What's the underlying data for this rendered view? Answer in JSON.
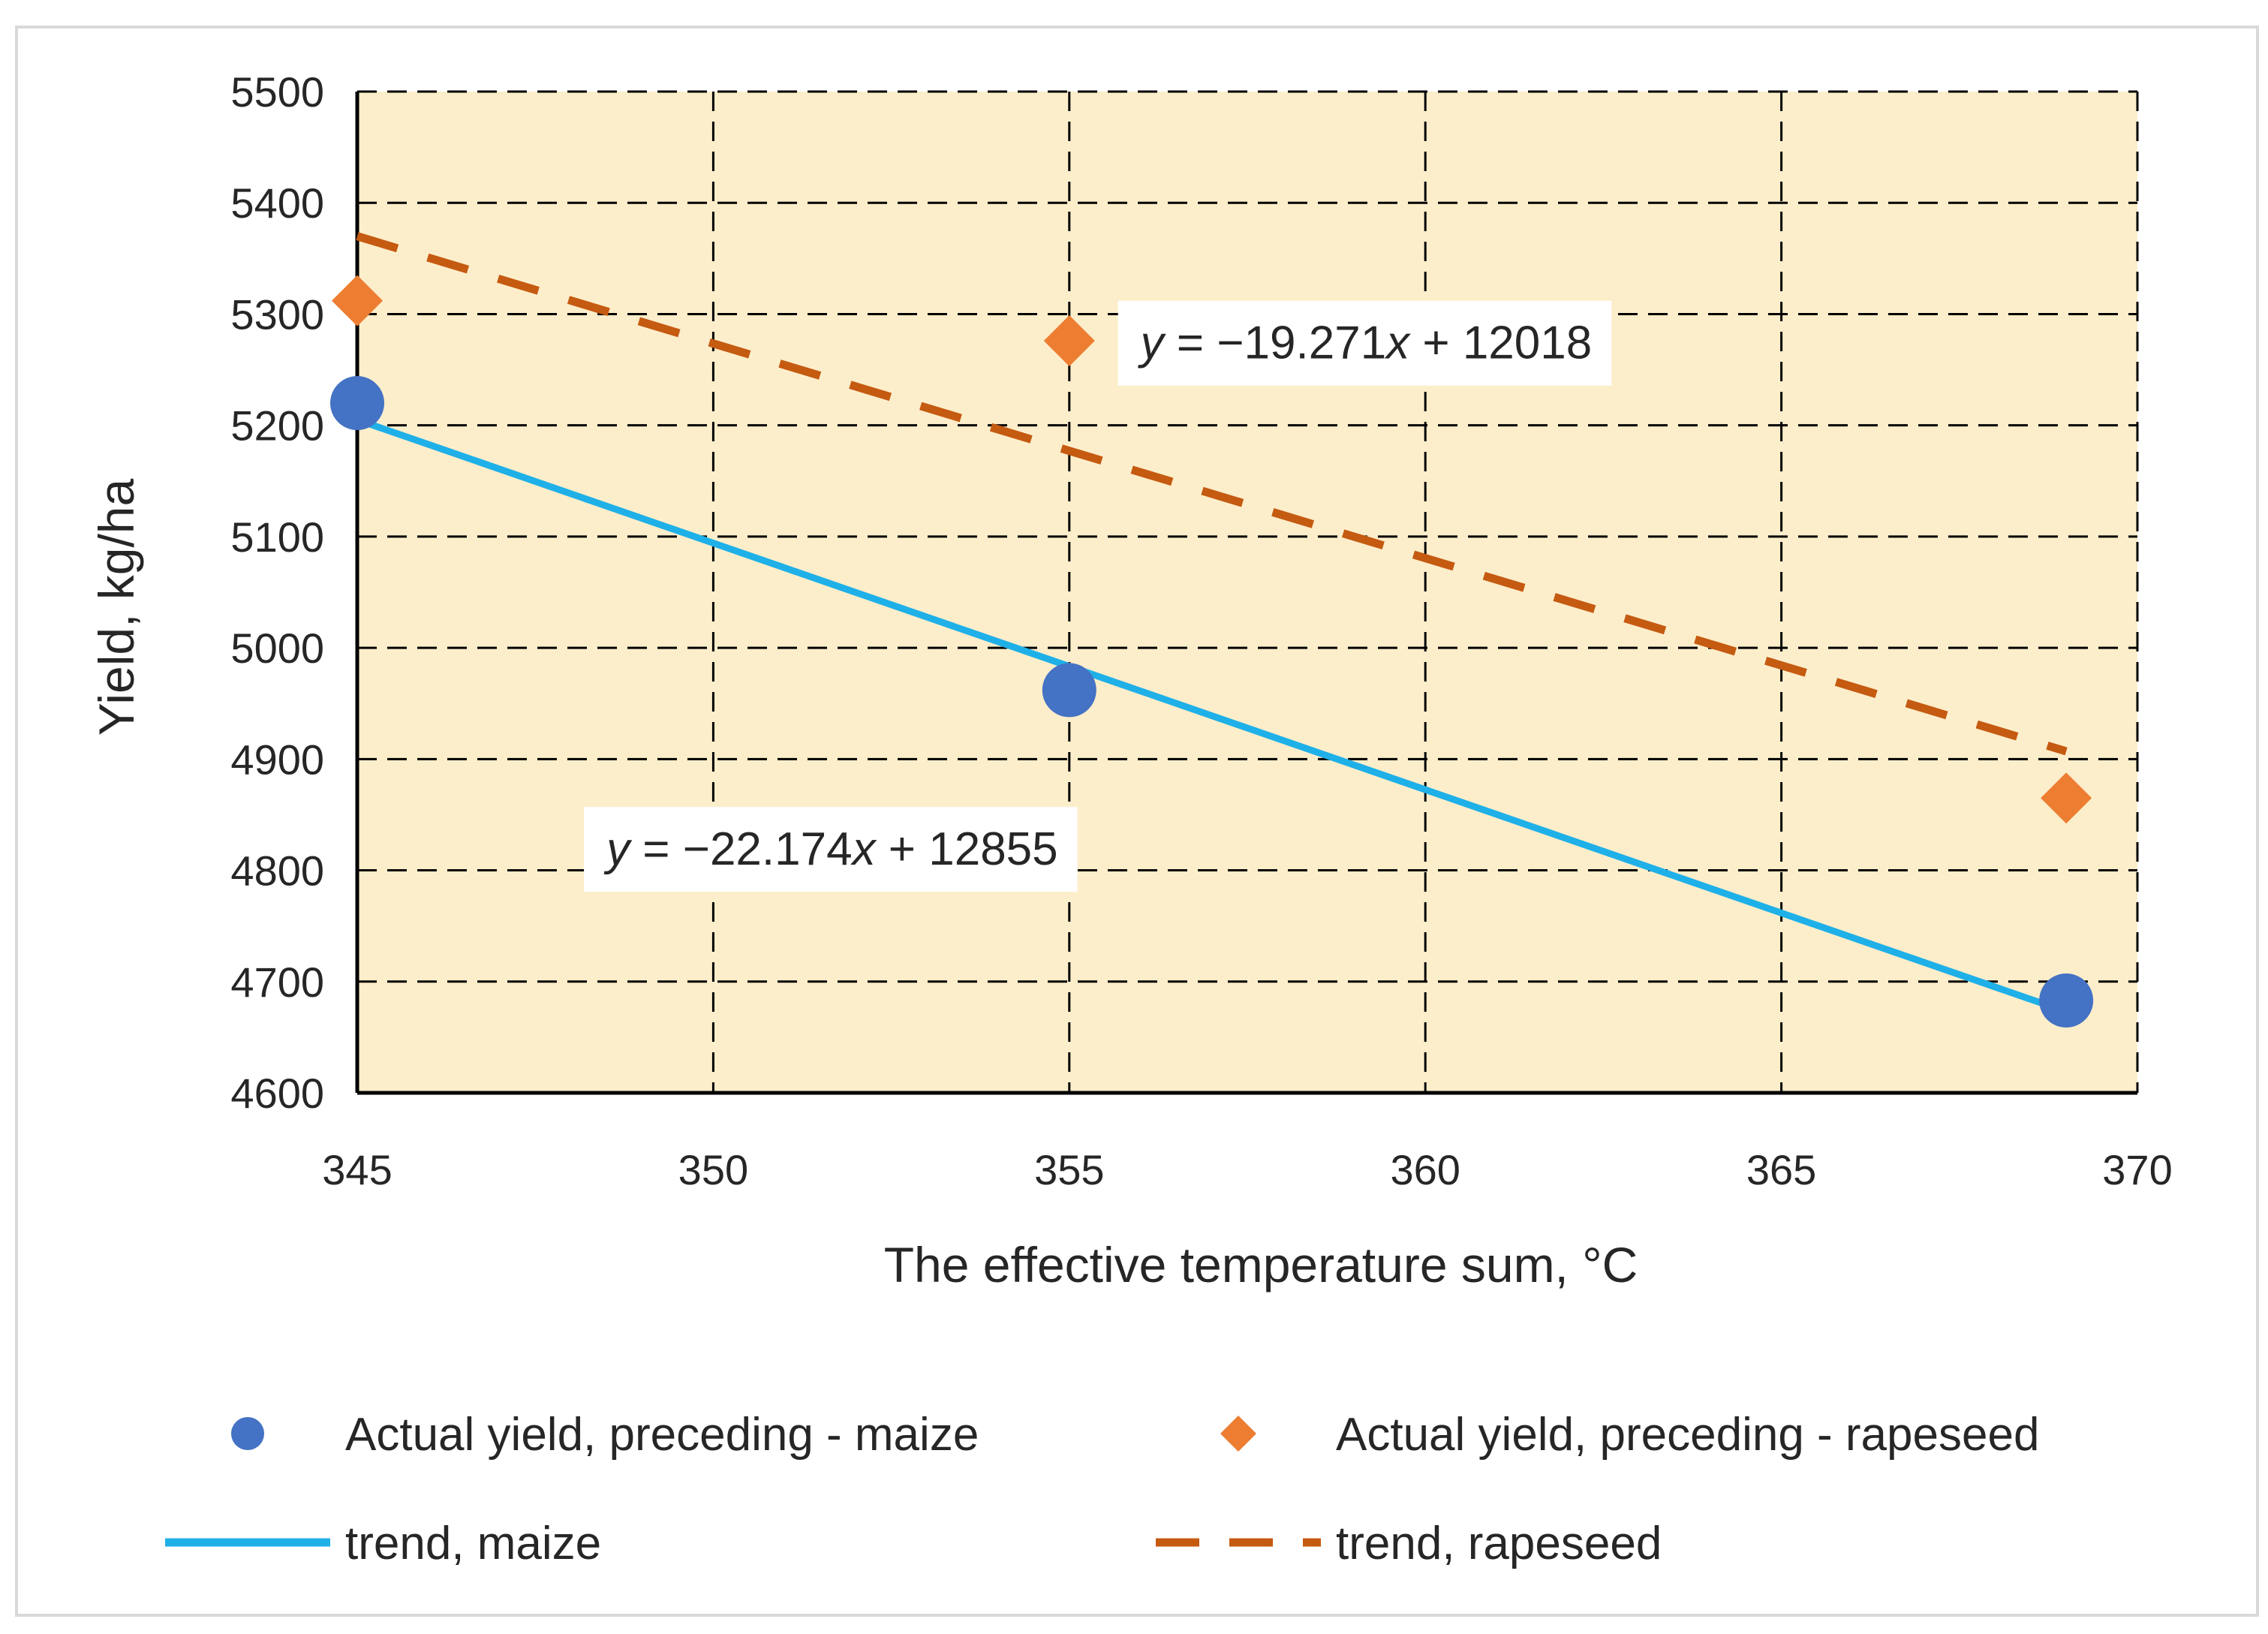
{
  "chart_data": {
    "type": "scatter",
    "title": "",
    "xlabel": "The effective temperature sum, °C",
    "ylabel": "Yield, kg/ha",
    "xlim": [
      345,
      370
    ],
    "ylim": [
      4600,
      5500
    ],
    "xticks": [
      345,
      350,
      355,
      360,
      365,
      370
    ],
    "yticks": [
      4600,
      4700,
      4800,
      4900,
      5000,
      5100,
      5200,
      5300,
      5400,
      5500
    ],
    "grid": true,
    "plot_background": "#fdeecb",
    "series": [
      {
        "name": "Actual yield, preceding - maize",
        "kind": "scatter",
        "marker": "circle",
        "color": "#4472c4",
        "x": [
          345,
          355,
          369
        ],
        "y": [
          5220,
          4962,
          4683
        ]
      },
      {
        "name": "Actual yield, preceding - rapeseed",
        "kind": "scatter",
        "marker": "diamond",
        "color": "#ed7d31",
        "x": [
          345,
          355,
          369
        ],
        "y": [
          5312,
          5276,
          4865
        ]
      },
      {
        "name": "trend, maize",
        "kind": "line",
        "style": "solid",
        "color": "#1fb0e8",
        "x": [
          345,
          369
        ],
        "y": [
          5205,
          4673
        ]
      },
      {
        "name": "trend, rapeseed",
        "kind": "line",
        "style": "dashed",
        "color": "#c55a11",
        "x": [
          345,
          369
        ],
        "y": [
          5370,
          4907
        ]
      }
    ],
    "annotations": [
      {
        "id": "eq-rapeseed",
        "pre": "y",
        "text": " = −19.271",
        "var": "x",
        "post": " + 12018",
        "at_x": 356,
        "at_y": 5260
      },
      {
        "id": "eq-maize",
        "pre": "y",
        "text": " = −22.174",
        "var": "x",
        "post": " + 12855",
        "at_x": 348.5,
        "at_y": 4805
      }
    ],
    "legend_position": "bottom"
  }
}
